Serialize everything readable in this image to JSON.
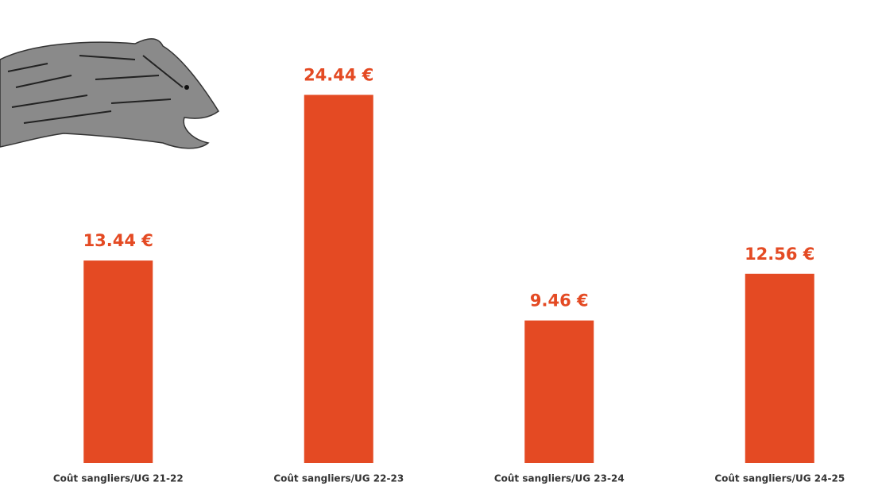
{
  "chart_data": {
    "type": "bar",
    "categories": [
      "Coût sangliers/UG 21-22",
      "Coût sangliers/UG 22-23",
      "Coût sangliers/UG 23-24",
      "Coût sangliers/UG 24-25"
    ],
    "values": [
      13.44,
      24.44,
      9.46,
      12.56
    ],
    "value_labels": [
      "13.44 €",
      "24.44 €",
      "9.46 €",
      "12.56 €"
    ],
    "color": "#e44a23",
    "ylim": [
      0,
      30
    ],
    "yticks": [
      0,
      5,
      10,
      15,
      20,
      25,
      30
    ],
    "grid": true
  }
}
